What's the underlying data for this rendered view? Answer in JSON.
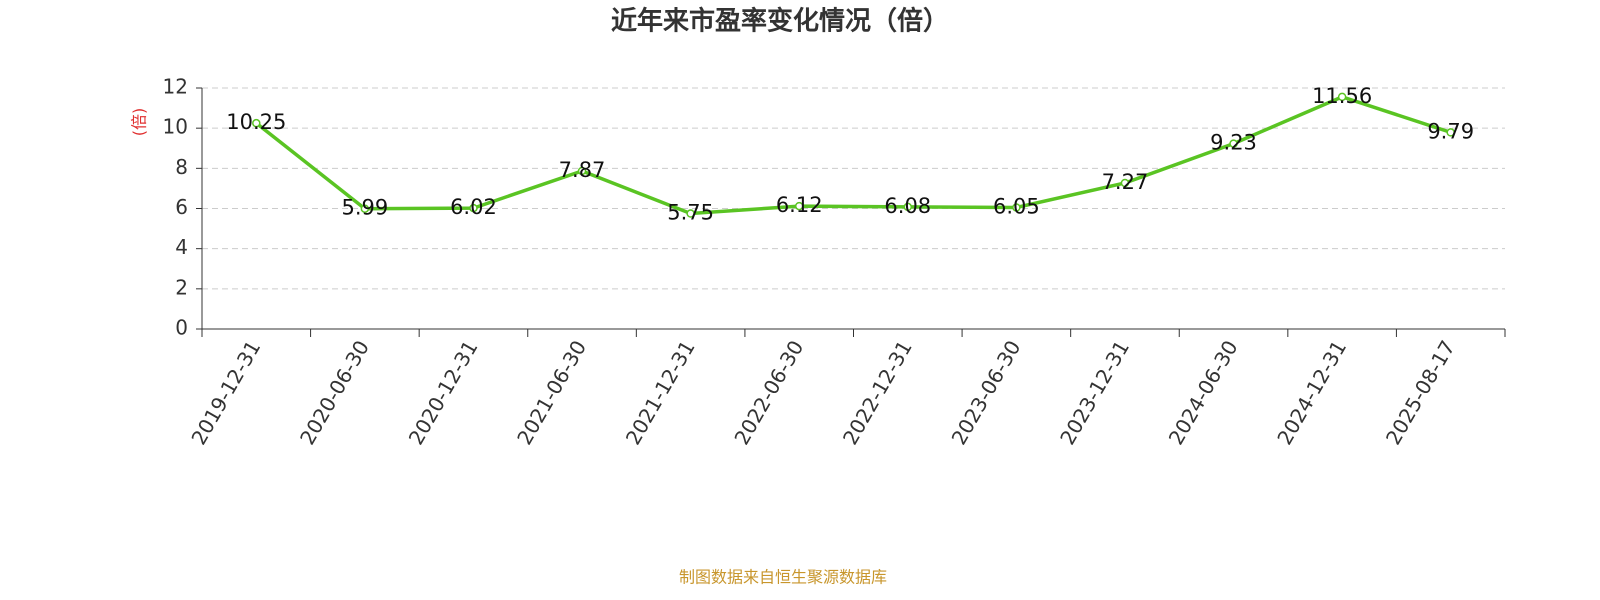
{
  "chart_data": {
    "type": "line",
    "title": "近年来市盈率变化情况（倍）",
    "y_label": "(倍)",
    "categories": [
      "2019-12-31",
      "2020-06-30",
      "2020-12-31",
      "2021-06-30",
      "2021-12-31",
      "2022-06-30",
      "2022-12-31",
      "2023-06-30",
      "2023-12-31",
      "2024-06-30",
      "2024-12-31",
      "2025-08-17"
    ],
    "series": [
      {
        "name": "市盈率",
        "color": "#5ac423",
        "values": [
          10.25,
          5.99,
          6.02,
          7.87,
          5.75,
          6.12,
          6.08,
          6.05,
          7.27,
          9.23,
          11.56,
          9.79
        ]
      }
    ],
    "ylim": [
      0,
      12
    ],
    "yticks": [
      0,
      2,
      4,
      6,
      8,
      10,
      12
    ],
    "grid": true,
    "source": "制图数据来自恒生聚源数据库"
  }
}
